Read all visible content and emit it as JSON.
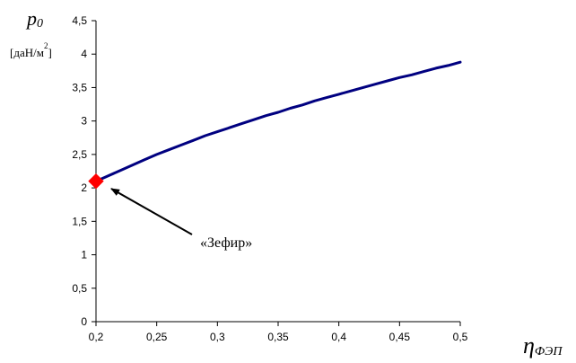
{
  "chart_data": {
    "type": "line",
    "ylabel_main": "p",
    "ylabel_sub": "0",
    "yunit_text": "[даН/м",
    "yunit_sup": "2",
    "yunit_close": "]",
    "xlabel_main": "η",
    "xlabel_sub": "ФЭП",
    "xlim": [
      0.2,
      0.5
    ],
    "ylim": [
      0,
      4.5
    ],
    "x_ticks": [
      "0,2",
      "0,25",
      "0,3",
      "0,35",
      "0,4",
      "0,45",
      "0,5"
    ],
    "y_ticks": [
      "0",
      "0,5",
      "1",
      "1,5",
      "2",
      "2,5",
      "3",
      "3,5",
      "4",
      "4,5"
    ],
    "series": [
      {
        "color": "#000080",
        "x": [
          0.2,
          0.21,
          0.22,
          0.23,
          0.24,
          0.25,
          0.26,
          0.27,
          0.28,
          0.29,
          0.3,
          0.31,
          0.32,
          0.33,
          0.34,
          0.35,
          0.36,
          0.37,
          0.38,
          0.39,
          0.4,
          0.41,
          0.42,
          0.43,
          0.44,
          0.45,
          0.46,
          0.47,
          0.48,
          0.49,
          0.5
        ],
        "y": [
          2.1,
          2.18,
          2.26,
          2.34,
          2.42,
          2.5,
          2.57,
          2.64,
          2.71,
          2.78,
          2.84,
          2.9,
          2.96,
          3.02,
          3.08,
          3.13,
          3.19,
          3.24,
          3.3,
          3.35,
          3.4,
          3.45,
          3.5,
          3.55,
          3.6,
          3.65,
          3.69,
          3.74,
          3.79,
          3.83,
          3.88
        ]
      }
    ],
    "marker_point": {
      "x": 0.2,
      "y": 2.1,
      "color": "#ff0000",
      "shape": "diamond"
    },
    "annotation": {
      "text": "«Зефир»",
      "arrow_target": {
        "x": 0.2,
        "y": 2.1
      }
    },
    "grid": false
  }
}
